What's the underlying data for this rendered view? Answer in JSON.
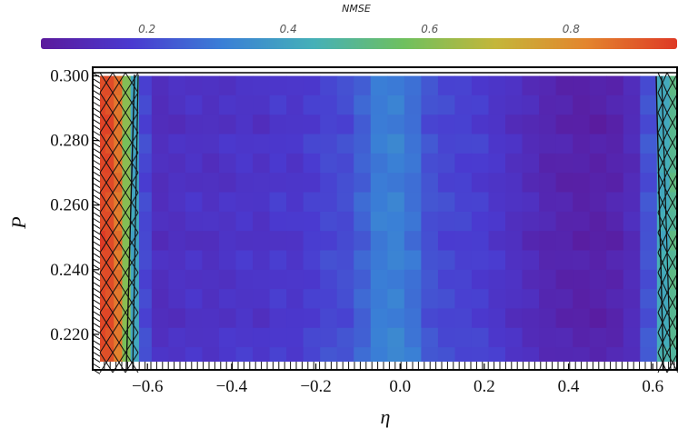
{
  "chart_data": {
    "type": "heatmap",
    "xlabel": "η",
    "ylabel": "P",
    "xlim": [
      -0.73,
      0.66
    ],
    "ylim": [
      0.209,
      0.301
    ],
    "xticks": [
      -0.6,
      -0.4,
      -0.2,
      0.0,
      0.2,
      0.4,
      0.6
    ],
    "xtick_labels": [
      "−0.6",
      "−0.4",
      "−0.2",
      "0.0",
      "0.2",
      "0.4",
      "0.6"
    ],
    "yticks": [
      0.22,
      0.24,
      0.26,
      0.28,
      0.3
    ],
    "ytick_labels": [
      "0.220",
      "0.240",
      "0.260",
      "0.280",
      "0.300"
    ],
    "colorbar": {
      "title": "NMSE",
      "range": [
        0.05,
        0.95
      ],
      "ticks": [
        0.2,
        0.4,
        0.6,
        0.8
      ],
      "tick_labels": [
        "0.2",
        "0.4",
        "0.6",
        "0.8"
      ],
      "colormap": [
        "#5b1a9c",
        "#4a3ad0",
        "#3a7fd6",
        "#45b0b8",
        "#6fc05e",
        "#c4b63a",
        "#e3852e",
        "#de3a26"
      ]
    },
    "grid": false,
    "hatched_region_note": "mesh-hatched invalid regions at both η edges and below P≈0.211",
    "x_cells": [
      -0.71,
      -0.69,
      -0.67,
      -0.65,
      -0.63,
      -0.61,
      -0.57,
      -0.53,
      -0.49,
      -0.45,
      -0.41,
      -0.37,
      -0.33,
      -0.29,
      -0.25,
      -0.21,
      -0.17,
      -0.13,
      -0.09,
      -0.05,
      -0.01,
      0.03,
      0.07,
      0.11,
      0.15,
      0.19,
      0.23,
      0.27,
      0.31,
      0.35,
      0.39,
      0.43,
      0.47,
      0.51,
      0.55,
      0.59,
      0.63,
      0.65
    ],
    "y_cells": [
      0.297,
      0.291,
      0.285,
      0.279,
      0.273,
      0.267,
      0.261,
      0.255,
      0.249,
      0.243,
      0.237,
      0.231,
      0.225,
      0.219,
      0.213
    ],
    "nmse_profile_vs_eta": [
      0.93,
      0.92,
      0.85,
      0.6,
      0.4,
      0.2,
      0.13,
      0.14,
      0.15,
      0.14,
      0.15,
      0.16,
      0.15,
      0.17,
      0.16,
      0.18,
      0.2,
      0.21,
      0.25,
      0.3,
      0.31,
      0.28,
      0.22,
      0.2,
      0.19,
      0.18,
      0.16,
      0.14,
      0.12,
      0.1,
      0.09,
      0.08,
      0.08,
      0.09,
      0.12,
      0.22,
      0.42,
      0.5
    ],
    "nmse_y_offsets": [
      0.0,
      0.005,
      -0.01,
      0.01,
      0.0,
      -0.005,
      0.01,
      0.005,
      -0.008,
      0.01,
      0.0,
      0.006,
      -0.004,
      0.012,
      0.018
    ]
  }
}
